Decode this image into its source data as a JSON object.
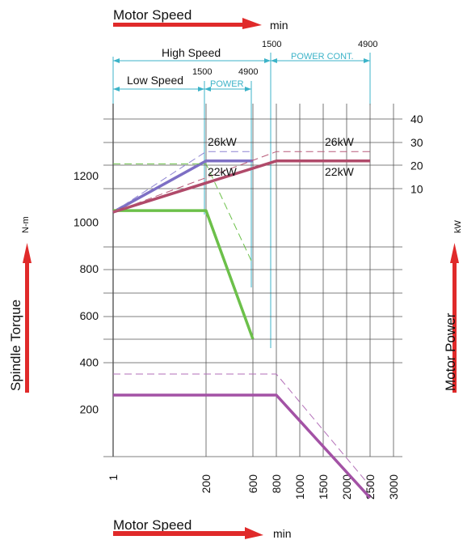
{
  "chart_data": {
    "type": "line",
    "x_axis": {
      "title": "Motor Speed",
      "unit": "min",
      "tick_labels": [
        "1",
        "200",
        "600",
        "800",
        "1000",
        "1500",
        "2000",
        "2500",
        "3000"
      ]
    },
    "y_axis_left": {
      "title": "Spindle  Torque",
      "unit": "N-m",
      "tick_labels": [
        "200",
        "400",
        "600",
        "800",
        "1000",
        "1200"
      ]
    },
    "y_axis_right": {
      "title": "Motor Power",
      "unit": "kW",
      "tick_labels": [
        "10",
        "20",
        "30",
        "40"
      ]
    },
    "ranges": {
      "high_speed": {
        "label": "High Speed",
        "start": "1500",
        "end": "4900",
        "sub_label": "POWER CONT."
      },
      "low_speed": {
        "label": "Low Speed",
        "start": "1500",
        "end": "4900",
        "sub_label": "POWER"
      }
    },
    "annotations": {
      "low_top": "26kW",
      "low_bottom": "22kW",
      "high_top": "26kW",
      "high_bottom": "22kW"
    },
    "series": [
      {
        "key": "low_power_cont",
        "axis": "right",
        "style": "solid",
        "color": "#7d6fc4",
        "points": [
          [
            "1",
            0
          ],
          [
            "200",
            22
          ],
          [
            "600",
            22
          ]
        ]
      },
      {
        "key": "low_power_30min",
        "axis": "right",
        "style": "dashed",
        "color": "#8e84d2",
        "points": [
          [
            "1",
            0
          ],
          [
            "200",
            26
          ],
          [
            "600",
            26
          ]
        ]
      },
      {
        "key": "low_torque_cont",
        "axis": "left",
        "style": "solid",
        "color": "#6cc04a",
        "points": [
          [
            "1",
            1050
          ],
          [
            "200",
            1050
          ],
          [
            "600",
            500
          ]
        ]
      },
      {
        "key": "low_torque_30min",
        "axis": "left",
        "style": "dashed",
        "color": "#6cc04a",
        "points": [
          [
            "1",
            1250
          ],
          [
            "200",
            1250
          ],
          [
            "600",
            820
          ]
        ]
      },
      {
        "key": "high_power_cont",
        "axis": "right",
        "style": "solid",
        "color": "#b04a6a",
        "points": [
          [
            "1",
            0
          ],
          [
            "800",
            22
          ],
          [
            "2500",
            22
          ]
        ]
      },
      {
        "key": "high_power_30min",
        "axis": "right",
        "style": "dashed",
        "color": "#b85c7a",
        "points": [
          [
            "1",
            0
          ],
          [
            "800",
            26
          ],
          [
            "2500",
            26
          ]
        ]
      },
      {
        "key": "high_torque_cont",
        "axis": "left",
        "style": "solid",
        "color": "#a352a5",
        "points": [
          [
            "1",
            260
          ],
          [
            "800",
            260
          ],
          [
            "2500",
            -180
          ]
        ]
      },
      {
        "key": "high_torque_30min",
        "axis": "left",
        "style": "dashed",
        "color": "#b36fb8",
        "points": [
          [
            "1",
            350
          ],
          [
            "800",
            350
          ],
          [
            "2500",
            -130
          ]
        ]
      }
    ],
    "colors": {
      "arrow": "#e02a2a",
      "range": "#3cb3c8",
      "grid": "#555555"
    }
  }
}
